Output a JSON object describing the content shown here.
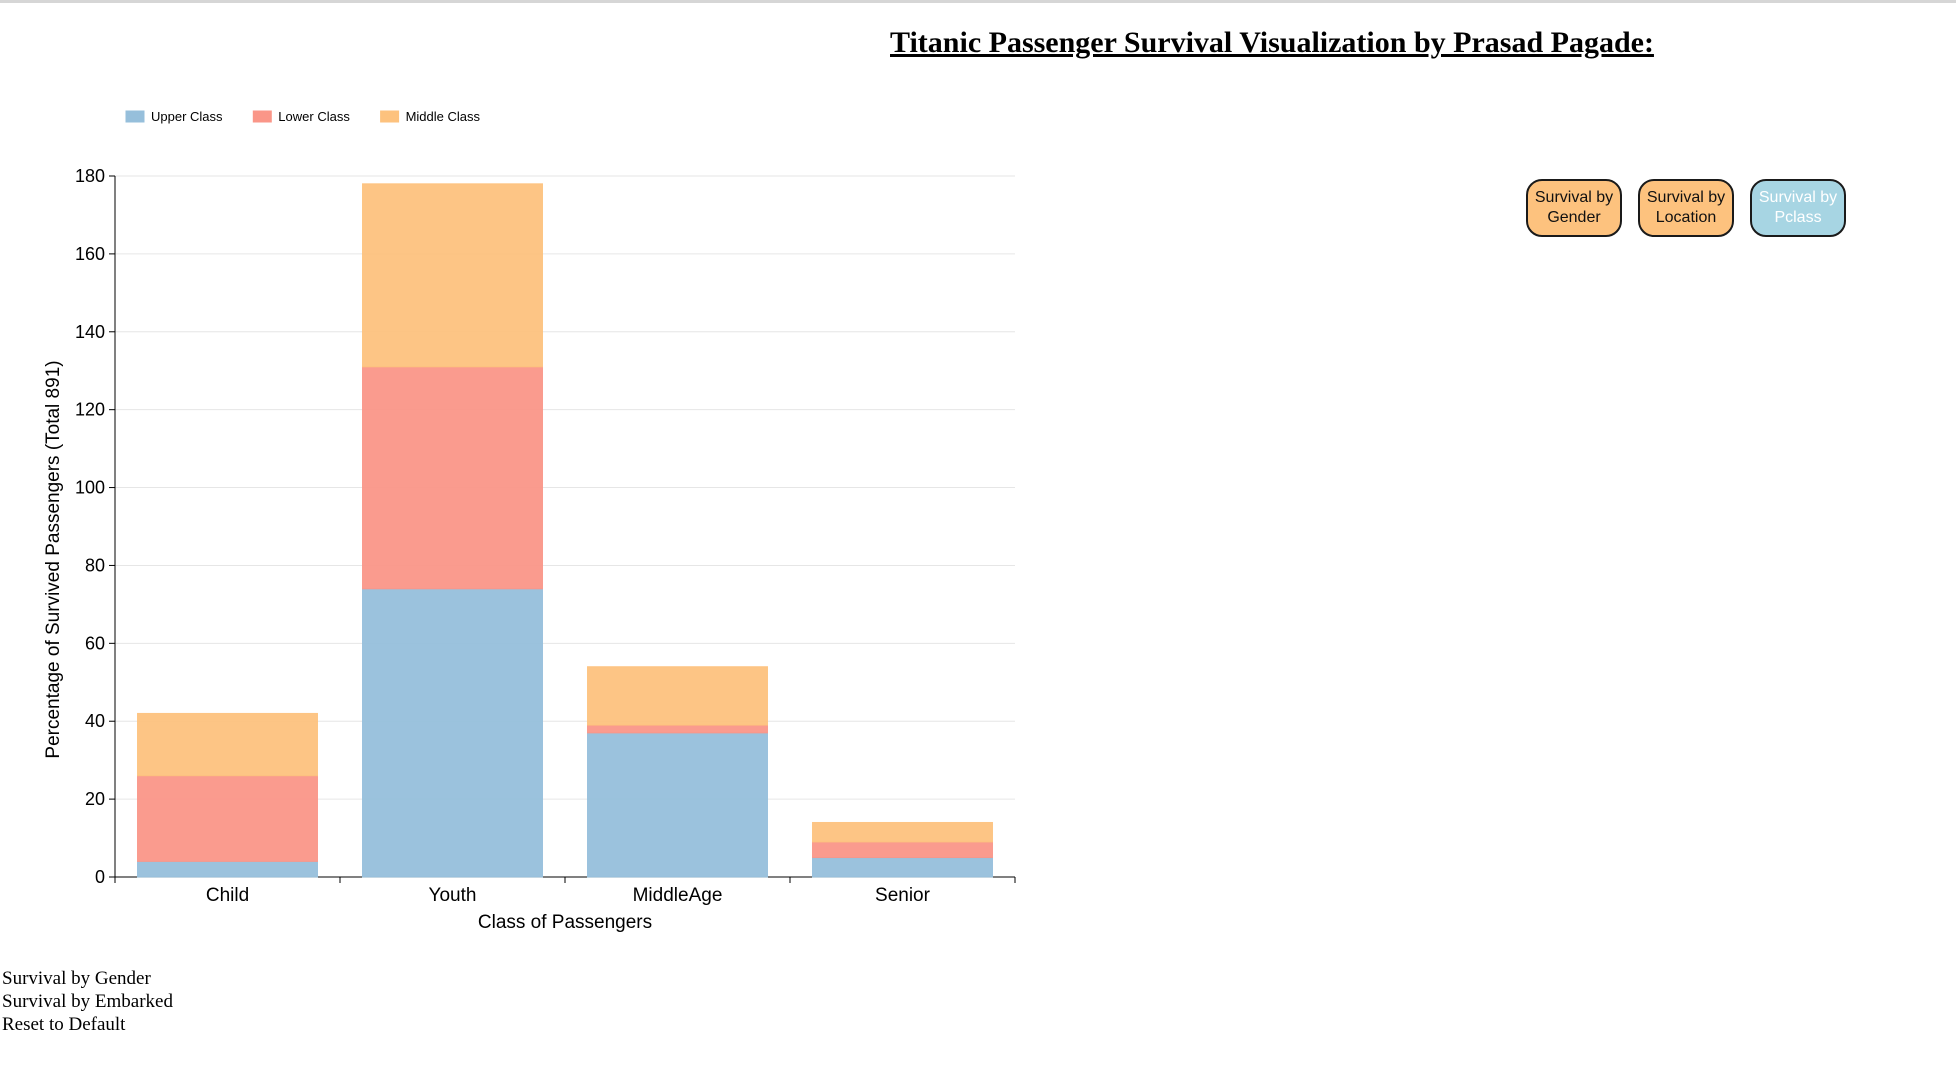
{
  "page": {
    "title": "Titanic Passenger Survival Visualization by Prasad Pagade:"
  },
  "buttons": [
    {
      "label": "Survival by Gender",
      "fill": "#fdc27e",
      "text_color": "#111111"
    },
    {
      "label": "Survival by Location",
      "fill": "#fdc27e",
      "text_color": "#111111"
    },
    {
      "label": "Survival by Pclass",
      "fill": "#a7d5e3",
      "text_color": "#ffffff"
    }
  ],
  "bottom_links": [
    "Survival by Gender",
    "Survival by Embarked",
    "Reset to Default"
  ],
  "chart_data": {
    "type": "bar",
    "stacked": true,
    "title": "",
    "xlabel": "Class of Passengers",
    "ylabel": "Percentage of Survived Passengers (Total 891)",
    "categories": [
      "Child",
      "Youth",
      "MiddleAge",
      "Senior"
    ],
    "ylim": [
      0,
      180
    ],
    "yticks": [
      0,
      20,
      40,
      60,
      80,
      100,
      120,
      140,
      160,
      180
    ],
    "grid": true,
    "legend_position": "top-left",
    "series": [
      {
        "name": "Upper Class",
        "color": "#96bfdb",
        "values": [
          4,
          74,
          37,
          5
        ]
      },
      {
        "name": "Lower Class",
        "color": "#fa9688",
        "values": [
          22,
          57,
          2,
          4
        ]
      },
      {
        "name": "Middle Class",
        "color": "#fdc27e",
        "values": [
          16,
          47,
          15,
          5
        ]
      }
    ]
  }
}
